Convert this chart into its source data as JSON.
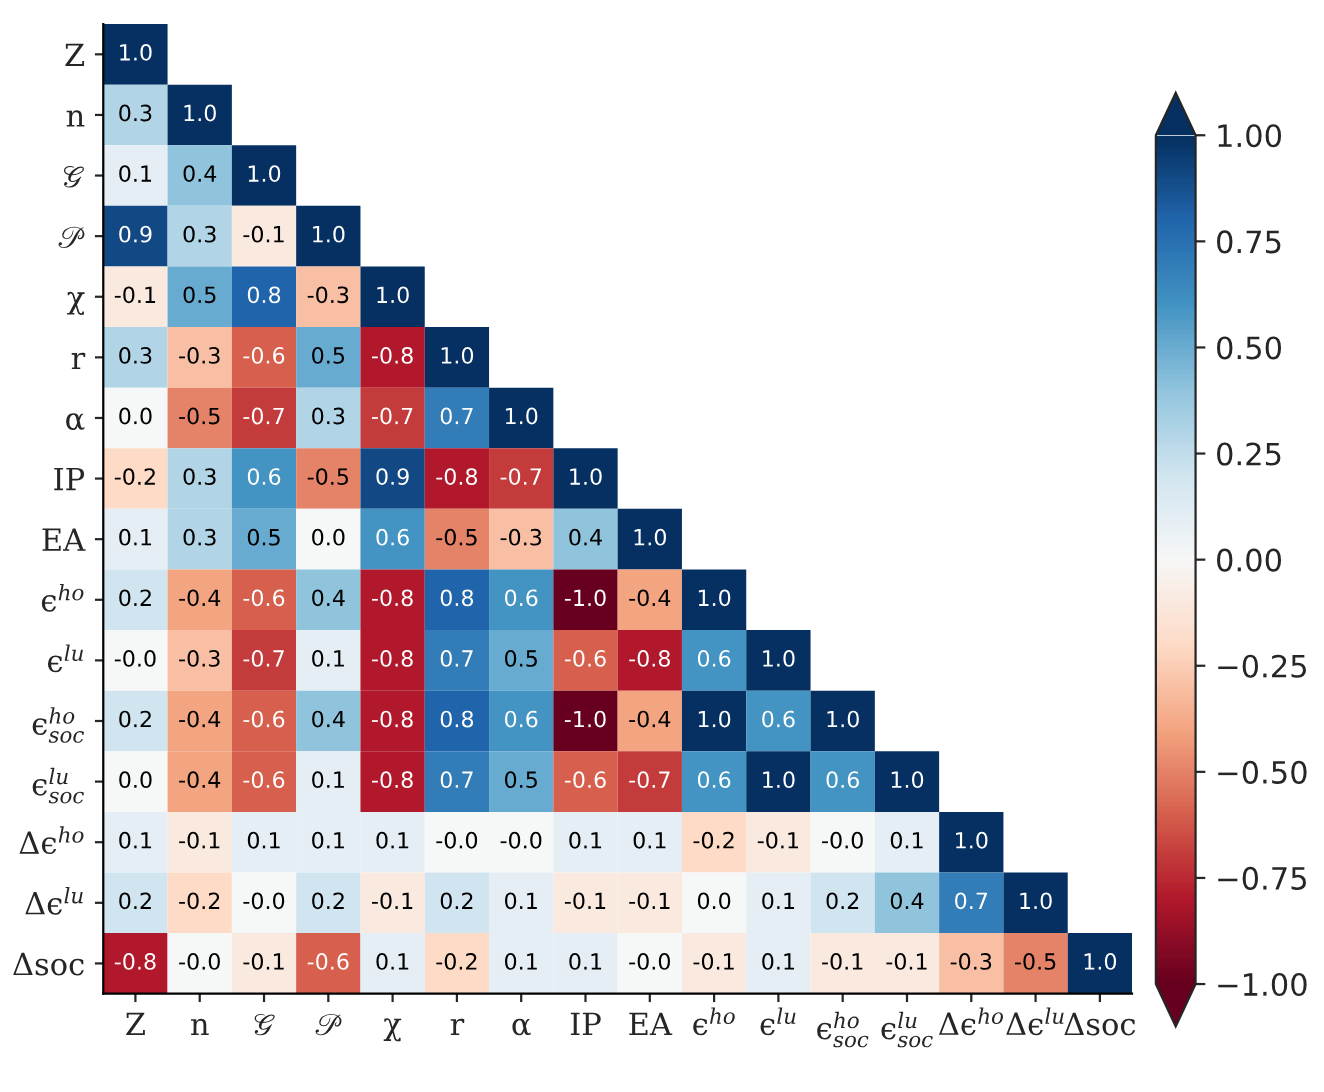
{
  "chart_data": {
    "type": "heatmap",
    "categories": [
      "Z",
      "n",
      "𝒢",
      "𝒫",
      "χ",
      "r",
      "α",
      "IP",
      "EA",
      "ϵ$^{ho}$",
      "ϵ$^{lu}$",
      "ϵ$^{ho}$$_{soc}$",
      "ϵ$^{lu}$$_{soc}$",
      "Δϵ$^{ho}$",
      "Δϵ$^{lu}$",
      "Δsoc"
    ],
    "y_categories": [
      "Z",
      "n",
      "𝒢",
      "𝒫",
      "χ",
      "r",
      "α",
      "IP",
      "EA",
      "ϵ$^{ho}$",
      "ϵ$^{lu}$",
      "ϵ$^{ho}$$_{soc}$",
      "ϵ$^{lu}$$_{soc}$",
      "Δϵ$^{ho}$",
      "Δϵ$^{lu}$",
      "Δsoc"
    ],
    "cells": [
      [
        1.0,
        null,
        null,
        null,
        null,
        null,
        null,
        null,
        null,
        null,
        null,
        null,
        null,
        null,
        null,
        null
      ],
      [
        0.3,
        1.0,
        null,
        null,
        null,
        null,
        null,
        null,
        null,
        null,
        null,
        null,
        null,
        null,
        null,
        null
      ],
      [
        0.1,
        0.4,
        1.0,
        null,
        null,
        null,
        null,
        null,
        null,
        null,
        null,
        null,
        null,
        null,
        null,
        null
      ],
      [
        0.9,
        0.3,
        -0.1,
        1.0,
        null,
        null,
        null,
        null,
        null,
        null,
        null,
        null,
        null,
        null,
        null,
        null
      ],
      [
        -0.1,
        0.5,
        0.8,
        -0.3,
        1.0,
        null,
        null,
        null,
        null,
        null,
        null,
        null,
        null,
        null,
        null,
        null
      ],
      [
        0.3,
        -0.3,
        -0.6,
        0.5,
        -0.8,
        1.0,
        null,
        null,
        null,
        null,
        null,
        null,
        null,
        null,
        null,
        null
      ],
      [
        0.0,
        -0.5,
        -0.7,
        0.3,
        -0.7,
        0.7,
        1.0,
        null,
        null,
        null,
        null,
        null,
        null,
        null,
        null,
        null
      ],
      [
        -0.2,
        0.3,
        0.6,
        -0.5,
        0.9,
        -0.8,
        -0.7,
        1.0,
        null,
        null,
        null,
        null,
        null,
        null,
        null,
        null
      ],
      [
        0.1,
        0.3,
        0.5,
        0.0,
        0.6,
        -0.5,
        -0.3,
        0.4,
        1.0,
        null,
        null,
        null,
        null,
        null,
        null,
        null
      ],
      [
        0.2,
        -0.4,
        -0.6,
        0.4,
        -0.8,
        0.8,
        0.6,
        -1.0,
        -0.4,
        1.0,
        null,
        null,
        null,
        null,
        null,
        null
      ],
      [
        -0.0,
        -0.3,
        -0.7,
        0.1,
        -0.8,
        0.7,
        0.5,
        -0.6,
        -0.8,
        0.6,
        1.0,
        null,
        null,
        null,
        null,
        null
      ],
      [
        0.2,
        -0.4,
        -0.6,
        0.4,
        -0.8,
        0.8,
        0.6,
        -1.0,
        -0.4,
        1.0,
        0.6,
        1.0,
        null,
        null,
        null,
        null
      ],
      [
        0.0,
        -0.4,
        -0.6,
        0.1,
        -0.8,
        0.7,
        0.5,
        -0.6,
        -0.7,
        0.6,
        1.0,
        0.6,
        1.0,
        null,
        null,
        null
      ],
      [
        0.1,
        -0.1,
        0.1,
        0.1,
        0.1,
        -0.0,
        -0.0,
        0.1,
        0.1,
        -0.2,
        -0.1,
        -0.0,
        0.1,
        1.0,
        null,
        null
      ],
      [
        0.2,
        -0.2,
        -0.0,
        0.2,
        -0.1,
        0.2,
        0.1,
        -0.1,
        -0.1,
        0.0,
        0.1,
        0.2,
        0.4,
        0.7,
        1.0,
        null
      ],
      [
        -0.8,
        -0.0,
        -0.1,
        -0.6,
        0.1,
        -0.2,
        0.1,
        0.1,
        -0.0,
        -0.1,
        0.1,
        -0.1,
        -0.1,
        -0.3,
        -0.5,
        1.0
      ]
    ],
    "cell_labels": [
      [
        "1.0",
        null,
        null,
        null,
        null,
        null,
        null,
        null,
        null,
        null,
        null,
        null,
        null,
        null,
        null,
        null
      ],
      [
        "0.3",
        "1.0",
        null,
        null,
        null,
        null,
        null,
        null,
        null,
        null,
        null,
        null,
        null,
        null,
        null,
        null
      ],
      [
        "0.1",
        "0.4",
        "1.0",
        null,
        null,
        null,
        null,
        null,
        null,
        null,
        null,
        null,
        null,
        null,
        null,
        null
      ],
      [
        "0.9",
        "0.3",
        "-0.1",
        "1.0",
        null,
        null,
        null,
        null,
        null,
        null,
        null,
        null,
        null,
        null,
        null,
        null
      ],
      [
        "-0.1",
        "0.5",
        "0.8",
        "-0.3",
        "1.0",
        null,
        null,
        null,
        null,
        null,
        null,
        null,
        null,
        null,
        null,
        null
      ],
      [
        "0.3",
        "-0.3",
        "-0.6",
        "0.5",
        "-0.8",
        "1.0",
        null,
        null,
        null,
        null,
        null,
        null,
        null,
        null,
        null,
        null
      ],
      [
        "0.0",
        "-0.5",
        "-0.7",
        "0.3",
        "-0.7",
        "0.7",
        "1.0",
        null,
        null,
        null,
        null,
        null,
        null,
        null,
        null,
        null
      ],
      [
        "-0.2",
        "0.3",
        "0.6",
        "-0.5",
        "0.9",
        "-0.8",
        "-0.7",
        "1.0",
        null,
        null,
        null,
        null,
        null,
        null,
        null,
        null
      ],
      [
        "0.1",
        "0.3",
        "0.5",
        "0.0",
        "0.6",
        "-0.5",
        "-0.3",
        "0.4",
        "1.0",
        null,
        null,
        null,
        null,
        null,
        null,
        null
      ],
      [
        "0.2",
        "-0.4",
        "-0.6",
        "0.4",
        "-0.8",
        "0.8",
        "0.6",
        "-1.0",
        "-0.4",
        "1.0",
        null,
        null,
        null,
        null,
        null,
        null
      ],
      [
        "-0.0",
        "-0.3",
        "-0.7",
        "0.1",
        "-0.8",
        "0.7",
        "0.5",
        "-0.6",
        "-0.8",
        "0.6",
        "1.0",
        null,
        null,
        null,
        null,
        null
      ],
      [
        "0.2",
        "-0.4",
        "-0.6",
        "0.4",
        "-0.8",
        "0.8",
        "0.6",
        "-1.0",
        "-0.4",
        "1.0",
        "0.6",
        "1.0",
        null,
        null,
        null,
        null
      ],
      [
        "0.0",
        "-0.4",
        "-0.6",
        "0.1",
        "-0.8",
        "0.7",
        "0.5",
        "-0.6",
        "-0.7",
        "0.6",
        "1.0",
        "0.6",
        "1.0",
        null,
        null,
        null
      ],
      [
        "0.1",
        "-0.1",
        "0.1",
        "0.1",
        "0.1",
        "-0.0",
        "-0.0",
        "0.1",
        "0.1",
        "-0.2",
        "-0.1",
        "-0.0",
        "0.1",
        "1.0",
        null,
        null
      ],
      [
        "0.2",
        "-0.2",
        "-0.0",
        "0.2",
        "-0.1",
        "0.2",
        "0.1",
        "-0.1",
        "-0.1",
        "0.0",
        "0.1",
        "0.2",
        "0.4",
        "0.7",
        "1.0",
        null
      ],
      [
        "-0.8",
        "-0.0",
        "-0.1",
        "-0.6",
        "0.1",
        "-0.2",
        "0.1",
        "0.1",
        "-0.0",
        "-0.1",
        "0.1",
        "-0.1",
        "-0.1",
        "-0.3",
        "-0.5",
        "1.0"
      ]
    ],
    "clim": [
      -1.0,
      1.0
    ],
    "cticks": [
      {
        "value": -1.0,
        "label": "−1.00"
      },
      {
        "value": -0.75,
        "label": "−0.75"
      },
      {
        "value": -0.5,
        "label": "−0.50"
      },
      {
        "value": -0.25,
        "label": "−0.25"
      },
      {
        "value": 0.0,
        "label": "0.00"
      },
      {
        "value": 0.25,
        "label": "0.25"
      },
      {
        "value": 0.5,
        "label": "0.50"
      },
      {
        "value": 0.75,
        "label": "0.75"
      },
      {
        "value": 1.0,
        "label": "1.00"
      }
    ]
  }
}
